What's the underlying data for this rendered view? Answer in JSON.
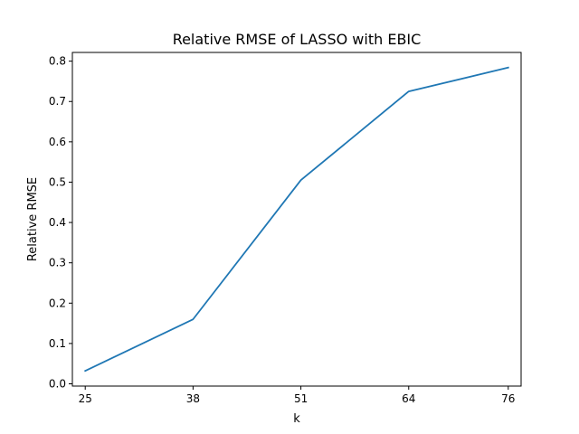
{
  "chart_data": {
    "type": "line",
    "title": "Relative RMSE of LASSO with EBIC",
    "xlabel": "k",
    "ylabel": "Relative RMSE",
    "x": [
      25,
      38,
      51,
      64,
      76
    ],
    "x_tick_labels": [
      "25",
      "38",
      "51",
      "64",
      "76"
    ],
    "series": [
      {
        "values": [
          0.032,
          0.16,
          0.505,
          0.725,
          0.784
        ]
      }
    ],
    "xlim": [
      23.45,
      77.55
    ],
    "ylim": [
      -0.0056,
      0.8216
    ],
    "y_ticks": [
      0.0,
      0.1,
      0.2,
      0.3,
      0.4,
      0.5,
      0.6,
      0.7,
      0.8
    ],
    "y_tick_labels": [
      "0.0",
      "0.1",
      "0.2",
      "0.3",
      "0.4",
      "0.5",
      "0.6",
      "0.7",
      "0.8"
    ],
    "grid": false,
    "colors": {
      "line": "#1f77b4",
      "axes": "#000000"
    }
  }
}
